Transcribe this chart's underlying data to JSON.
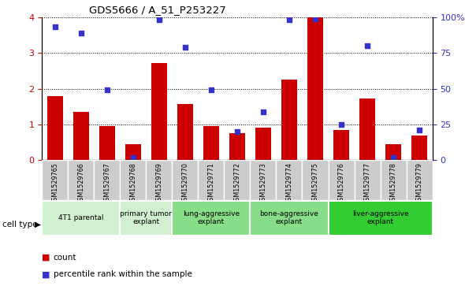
{
  "title": "GDS5666 / A_51_P253227",
  "samples": [
    "GSM1529765",
    "GSM1529766",
    "GSM1529767",
    "GSM1529768",
    "GSM1529769",
    "GSM1529770",
    "GSM1529771",
    "GSM1529772",
    "GSM1529773",
    "GSM1529774",
    "GSM1529775",
    "GSM1529776",
    "GSM1529777",
    "GSM1529778",
    "GSM1529779"
  ],
  "counts": [
    1.8,
    1.35,
    0.95,
    0.45,
    2.72,
    1.58,
    0.95,
    0.75,
    0.9,
    2.25,
    4.0,
    0.85,
    1.72,
    0.45,
    0.7
  ],
  "percentiles": [
    93,
    89,
    49,
    2,
    98,
    79,
    49,
    20,
    34,
    98,
    99,
    25,
    80,
    2,
    21
  ],
  "ylim_left": [
    0,
    4
  ],
  "ylim_right": [
    0,
    100
  ],
  "yticks_left": [
    0,
    1,
    2,
    3,
    4
  ],
  "yticks_right": [
    0,
    25,
    50,
    75,
    100
  ],
  "ytick_labels_right": [
    "0",
    "25",
    "50",
    "75",
    "100%"
  ],
  "bar_color": "#cc0000",
  "dot_color": "#3333cc",
  "cell_groups": [
    {
      "label": "4T1 parental",
      "start": 0,
      "end": 3,
      "color": "#d0f0d0"
    },
    {
      "label": "primary tumor\nexplant",
      "start": 3,
      "end": 5,
      "color": "#d0f0d0"
    },
    {
      "label": "lung-aggressive\nexplant",
      "start": 5,
      "end": 8,
      "color": "#88dd88"
    },
    {
      "label": "bone-aggressive\nexplant",
      "start": 8,
      "end": 11,
      "color": "#88dd88"
    },
    {
      "label": "liver-aggressive\nexplant",
      "start": 11,
      "end": 15,
      "color": "#33cc33"
    }
  ],
  "legend_count_label": "count",
  "legend_pct_label": "percentile rank within the sample",
  "cell_type_label": "cell type",
  "xtick_bg": "#cccccc"
}
